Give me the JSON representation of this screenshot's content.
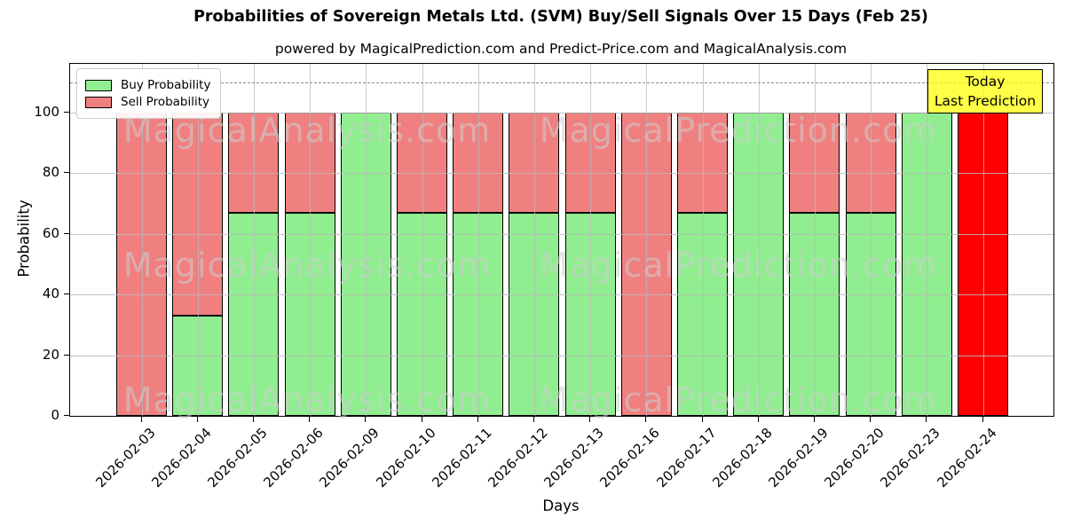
{
  "chart_data": {
    "type": "bar",
    "stacked": true,
    "title": "Probabilities of Sovereign Metals Ltd. (SVM) Buy/Sell Signals Over 15 Days (Feb 25)",
    "subtitle": "powered by MagicalPrediction.com and Predict-Price.com and MagicalAnalysis.com",
    "xlabel": "Days",
    "ylabel": "Probability",
    "ylim": [
      0,
      116
    ],
    "y_ticks": [
      0,
      20,
      40,
      60,
      80,
      100
    ],
    "grid": true,
    "legend_position": "upper left",
    "categories": [
      "2026-02-03",
      "2026-02-04",
      "2026-02-05",
      "2026-02-06",
      "2026-02-09",
      "2026-02-10",
      "2026-02-11",
      "2026-02-12",
      "2026-02-13",
      "2026-02-16",
      "2026-02-17",
      "2026-02-18",
      "2026-02-19",
      "2026-02-20",
      "2026-02-23",
      "2026-02-24"
    ],
    "series": [
      {
        "name": "Buy Probability",
        "color": "#90EE90",
        "values": [
          0,
          33,
          67,
          67,
          100,
          67,
          67,
          67,
          67,
          0,
          67,
          100,
          67,
          67,
          100,
          0
        ]
      },
      {
        "name": "Sell Probability",
        "color": "#F08080",
        "values": [
          100,
          67,
          33,
          33,
          0,
          33,
          33,
          33,
          33,
          100,
          33,
          0,
          33,
          33,
          0,
          100
        ]
      }
    ],
    "today_bar": {
      "category": "2026-02-24",
      "index": 15,
      "color": "#FF0000"
    },
    "threshold_line": {
      "y": 110,
      "style": "dashed",
      "color": "#8a8a8a"
    }
  },
  "annotation": {
    "line1": "Today",
    "line2": "Last Prediction",
    "bg_color": "#FFFF00"
  },
  "watermarks": {
    "left": "MagicalAnalysis.com",
    "right": "MagicalPrediction.com",
    "rows": 3
  }
}
